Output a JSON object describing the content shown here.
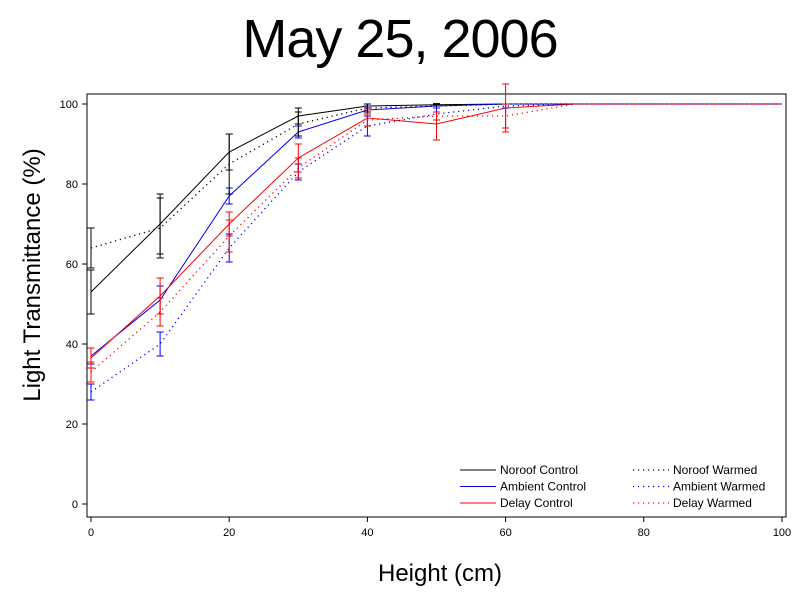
{
  "chart_data": {
    "type": "line",
    "title": "May 25, 2006",
    "xlabel": "Height (cm)",
    "ylabel": "Light Transmittance (%)",
    "xlim": [
      0,
      100
    ],
    "ylim": [
      0,
      100
    ],
    "xticks": [
      0,
      20,
      40,
      60,
      80,
      100
    ],
    "yticks": [
      0,
      20,
      40,
      60,
      80,
      100
    ],
    "grid": false,
    "legend_position": "bottom-right",
    "series": [
      {
        "name": "Noroof Control",
        "color": "#000000",
        "style": "solid",
        "points": [
          {
            "x": 0,
            "y": 53,
            "err": 5.5
          },
          {
            "x": 10,
            "y": 70,
            "err": 7.5
          },
          {
            "x": 20,
            "y": 88,
            "err": 4.5
          },
          {
            "x": 30,
            "y": 97,
            "err": 2
          },
          {
            "x": 40,
            "y": 99.5,
            "err": 0.5
          },
          {
            "x": 50,
            "y": 99.8,
            "err": 0.3
          },
          {
            "x": 60,
            "y": 100
          },
          {
            "x": 70,
            "y": 100
          },
          {
            "x": 100,
            "y": 100
          }
        ]
      },
      {
        "name": "Ambient Control",
        "color": "#0000ff",
        "style": "solid",
        "points": [
          {
            "x": 0,
            "y": 37,
            "err": 2
          },
          {
            "x": 10,
            "y": 51,
            "err": 3.5
          },
          {
            "x": 20,
            "y": 77,
            "err": 2
          },
          {
            "x": 30,
            "y": 93,
            "err": 1.5
          },
          {
            "x": 40,
            "y": 98.5,
            "err": 1
          },
          {
            "x": 50,
            "y": 99.5,
            "err": 0.5
          },
          {
            "x": 60,
            "y": 100
          },
          {
            "x": 70,
            "y": 100
          },
          {
            "x": 100,
            "y": 100
          }
        ]
      },
      {
        "name": "Delay Control",
        "color": "#ff0000",
        "style": "solid",
        "points": [
          {
            "x": 0,
            "y": 36.5,
            "err": 2.5
          },
          {
            "x": 10,
            "y": 52,
            "err": 4.5
          },
          {
            "x": 20,
            "y": 70,
            "err": 3
          },
          {
            "x": 30,
            "y": 86.5,
            "err": 3.5
          },
          {
            "x": 40,
            "y": 96.5,
            "err": 2
          },
          {
            "x": 50,
            "y": 95,
            "err": 4
          },
          {
            "x": 60,
            "y": 99,
            "err": 6
          },
          {
            "x": 70,
            "y": 100
          },
          {
            "x": 100,
            "y": 100
          }
        ]
      },
      {
        "name": "Noroof Warmed",
        "color": "#000000",
        "style": "dotted",
        "points": [
          {
            "x": 0,
            "y": 64,
            "err": 5
          },
          {
            "x": 10,
            "y": 69,
            "err": 7.5
          },
          {
            "x": 20,
            "y": 85,
            "err": 7.5
          },
          {
            "x": 30,
            "y": 95,
            "err": 3
          },
          {
            "x": 40,
            "y": 99,
            "err": 1
          },
          {
            "x": 50,
            "y": 99.5,
            "err": 0.5
          },
          {
            "x": 60,
            "y": 100
          },
          {
            "x": 70,
            "y": 100
          },
          {
            "x": 100,
            "y": 100
          }
        ]
      },
      {
        "name": "Ambient Warmed",
        "color": "#0000ff",
        "style": "dotted",
        "points": [
          {
            "x": 0,
            "y": 28,
            "err": 2
          },
          {
            "x": 10,
            "y": 40,
            "err": 3
          },
          {
            "x": 20,
            "y": 64,
            "err": 3.5
          },
          {
            "x": 30,
            "y": 83,
            "err": 2
          },
          {
            "x": 40,
            "y": 94.5,
            "err": 2.5
          },
          {
            "x": 50,
            "y": 97.5,
            "err": 1.5
          },
          {
            "x": 60,
            "y": 99.5,
            "err": 0.5
          },
          {
            "x": 70,
            "y": 100
          },
          {
            "x": 100,
            "y": 100
          }
        ]
      },
      {
        "name": "Delay Warmed",
        "color": "#ff0000",
        "style": "dotted",
        "points": [
          {
            "x": 0,
            "y": 33,
            "err": 2.5
          },
          {
            "x": 10,
            "y": 48,
            "err": 3.5
          },
          {
            "x": 20,
            "y": 67,
            "err": 4
          },
          {
            "x": 30,
            "y": 84,
            "err": 2.5
          },
          {
            "x": 40,
            "y": 96,
            "err": 1.5
          },
          {
            "x": 50,
            "y": 97,
            "err": 1
          },
          {
            "x": 60,
            "y": 97,
            "err": 3
          },
          {
            "x": 70,
            "y": 100
          },
          {
            "x": 100,
            "y": 100
          }
        ]
      }
    ],
    "legend": [
      {
        "label": "Noroof Control",
        "series": 0
      },
      {
        "label": "Ambient Control",
        "series": 1
      },
      {
        "label": "Delay Control",
        "series": 2
      },
      {
        "label": "Noroof Warmed",
        "series": 3
      },
      {
        "label": "Ambient Warmed",
        "series": 4
      },
      {
        "label": "Delay Warmed",
        "series": 5
      }
    ]
  }
}
